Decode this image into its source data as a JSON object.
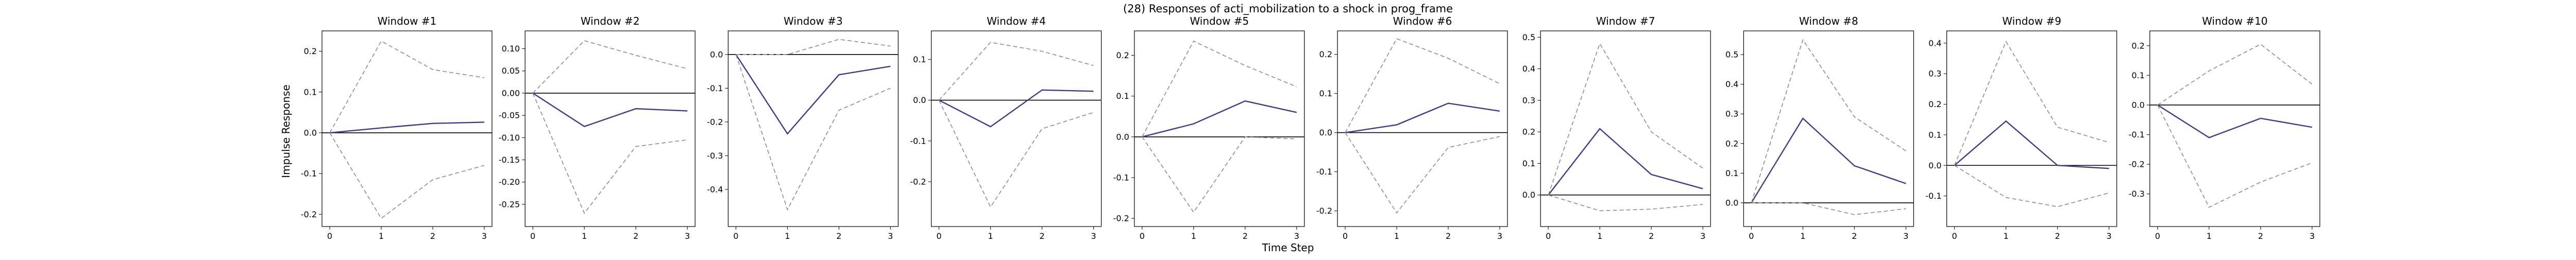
{
  "figure": {
    "title": "(28) Responses of acti_mobilization to a shock in prog_frame",
    "xlabel": "Time Step",
    "ylabel": "Impulse Response"
  },
  "chart_data": [
    {
      "type": "line",
      "title": "Window #1",
      "x": [
        0,
        1,
        2,
        3
      ],
      "ylim": [
        -0.23,
        0.25
      ],
      "yticks": [
        -0.2,
        -0.1,
        0.0,
        0.1,
        0.2
      ],
      "yformat": 1,
      "series": [
        {
          "values": [
            0.0,
            0.012,
            0.023,
            0.026
          ]
        },
        {
          "values": [
            0.0,
            0.225,
            0.155,
            0.135
          ]
        },
        {
          "values": [
            0.0,
            -0.21,
            -0.115,
            -0.08
          ]
        }
      ]
    },
    {
      "type": "line",
      "title": "Window #2",
      "x": [
        0,
        1,
        2,
        3
      ],
      "ylim": [
        -0.3,
        0.14
      ],
      "yticks": [
        -0.25,
        -0.2,
        -0.15,
        -0.1,
        -0.05,
        0.0,
        0.05,
        0.1
      ],
      "yformat": 2,
      "series": [
        {
          "values": [
            0.0,
            -0.075,
            -0.035,
            -0.04
          ]
        },
        {
          "values": [
            0.0,
            0.118,
            0.085,
            0.055
          ]
        },
        {
          "values": [
            0.0,
            -0.27,
            -0.12,
            -0.105
          ]
        }
      ]
    },
    {
      "type": "line",
      "title": "Window #3",
      "x": [
        0,
        1,
        2,
        3
      ],
      "ylim": [
        -0.51,
        0.07
      ],
      "yticks": [
        -0.4,
        -0.3,
        -0.2,
        -0.1,
        0.0
      ],
      "yformat": 1,
      "series": [
        {
          "values": [
            0.0,
            -0.235,
            -0.06,
            -0.035
          ]
        },
        {
          "values": [
            0.0,
            0.0,
            0.045,
            0.025
          ]
        },
        {
          "values": [
            0.0,
            -0.46,
            -0.165,
            -0.1
          ]
        }
      ]
    },
    {
      "type": "line",
      "title": "Window #4",
      "x": [
        0,
        1,
        2,
        3
      ],
      "ylim": [
        -0.31,
        0.17
      ],
      "yticks": [
        -0.2,
        -0.1,
        0.0,
        0.1
      ],
      "yformat": 1,
      "series": [
        {
          "values": [
            0.0,
            -0.065,
            0.025,
            0.022
          ]
        },
        {
          "values": [
            0.0,
            0.142,
            0.12,
            0.085
          ]
        },
        {
          "values": [
            0.0,
            -0.262,
            -0.07,
            -0.03
          ]
        }
      ]
    },
    {
      "type": "line",
      "title": "Window #5",
      "x": [
        0,
        1,
        2,
        3
      ],
      "ylim": [
        -0.22,
        0.26
      ],
      "yticks": [
        -0.2,
        -0.1,
        0.0,
        0.1,
        0.2
      ],
      "yformat": 1,
      "series": [
        {
          "values": [
            0.0,
            0.032,
            0.088,
            0.06
          ]
        },
        {
          "values": [
            0.0,
            0.235,
            0.175,
            0.123
          ]
        },
        {
          "values": [
            0.0,
            -0.185,
            0.0,
            -0.005
          ]
        }
      ]
    },
    {
      "type": "line",
      "title": "Window #6",
      "x": [
        0,
        1,
        2,
        3
      ],
      "ylim": [
        -0.24,
        0.26
      ],
      "yticks": [
        -0.2,
        -0.1,
        0.0,
        0.1,
        0.2
      ],
      "yformat": 1,
      "series": [
        {
          "values": [
            0.0,
            0.02,
            0.075,
            0.055
          ]
        },
        {
          "values": [
            0.0,
            0.24,
            0.19,
            0.125
          ]
        },
        {
          "values": [
            0.0,
            -0.205,
            -0.038,
            -0.01
          ]
        }
      ]
    },
    {
      "type": "line",
      "title": "Window #7",
      "x": [
        0,
        1,
        2,
        3
      ],
      "ylim": [
        -0.1,
        0.52
      ],
      "yticks": [
        0.0,
        0.1,
        0.2,
        0.3,
        0.4,
        0.5
      ],
      "yformat": 1,
      "series": [
        {
          "values": [
            0.0,
            0.21,
            0.065,
            0.02
          ]
        },
        {
          "values": [
            0.0,
            0.48,
            0.2,
            0.085
          ]
        },
        {
          "values": [
            0.0,
            -0.05,
            -0.045,
            -0.03
          ]
        }
      ]
    },
    {
      "type": "line",
      "title": "Window #8",
      "x": [
        0,
        1,
        2,
        3
      ],
      "ylim": [
        -0.08,
        0.58
      ],
      "yticks": [
        0.0,
        0.1,
        0.2,
        0.3,
        0.4,
        0.5
      ],
      "yformat": 1,
      "series": [
        {
          "values": [
            0.0,
            0.285,
            0.125,
            0.065
          ]
        },
        {
          "values": [
            0.0,
            0.55,
            0.29,
            0.175
          ]
        },
        {
          "values": [
            0.0,
            0.0,
            -0.04,
            -0.02
          ]
        }
      ]
    },
    {
      "type": "line",
      "title": "Window #9",
      "x": [
        0,
        1,
        2,
        3
      ],
      "ylim": [
        -0.2,
        0.44
      ],
      "yticks": [
        -0.1,
        0.0,
        0.1,
        0.2,
        0.3,
        0.4
      ],
      "yformat": 1,
      "series": [
        {
          "values": [
            0.0,
            0.145,
            0.0,
            -0.01
          ]
        },
        {
          "values": [
            0.0,
            0.405,
            0.125,
            0.075
          ]
        },
        {
          "values": [
            0.0,
            -0.105,
            -0.135,
            -0.09
          ]
        }
      ]
    },
    {
      "type": "line",
      "title": "Window #10",
      "x": [
        0,
        1,
        2,
        3
      ],
      "ylim": [
        -0.41,
        0.25
      ],
      "yticks": [
        -0.3,
        -0.2,
        -0.1,
        0.0,
        0.1,
        0.2
      ],
      "yformat": 1,
      "series": [
        {
          "values": [
            0.0,
            -0.11,
            -0.045,
            -0.075
          ]
        },
        {
          "values": [
            0.0,
            0.115,
            0.205,
            0.07
          ]
        },
        {
          "values": [
            0.0,
            -0.345,
            -0.26,
            -0.195
          ]
        }
      ]
    }
  ],
  "style": {
    "irf_color": "#3b3b8c",
    "band_color": "#8c8c8c",
    "zero_line_color": "#000000",
    "line_styles": [
      "solid",
      "dashed",
      "dashed"
    ]
  }
}
